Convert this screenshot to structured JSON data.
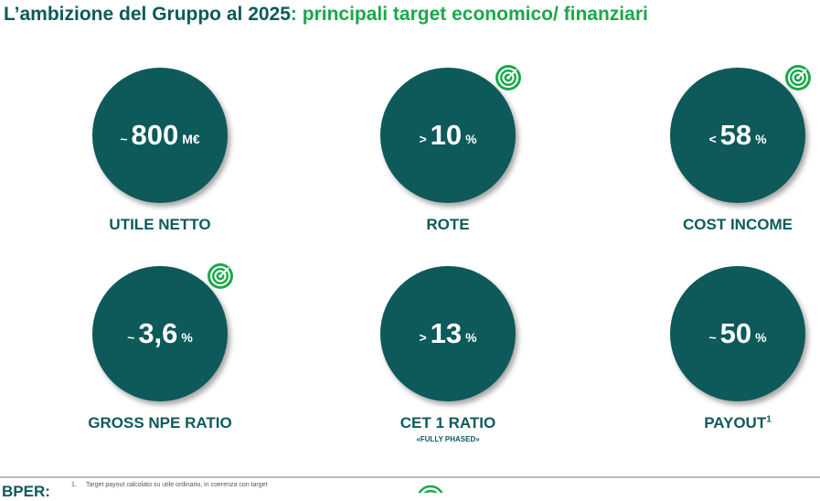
{
  "header": {
    "title_main": "L’ambizione del Gruppo al 2025",
    "title_highlight": ": principali target economico/ finanziari"
  },
  "targets": [
    {
      "prefix": "~",
      "value": "800",
      "unit": "M€",
      "label": "UTILE NETTO",
      "target_icon": false
    },
    {
      "prefix": ">",
      "value": "10",
      "unit": "%",
      "label": "ROTE",
      "target_icon": true
    },
    {
      "prefix": "<",
      "value": "58",
      "unit": "%",
      "label": "COST INCOME",
      "target_icon": true
    },
    {
      "prefix": "~",
      "value": "3,6",
      "unit": "%",
      "label": "GROSS NPE RATIO",
      "target_icon": true
    },
    {
      "prefix": ">",
      "value": "13",
      "unit": "%",
      "label": "CET 1 RATIO",
      "sublabel": "«FULLY PHASED»",
      "target_icon": false
    },
    {
      "prefix": "~",
      "value": "50",
      "unit": "%",
      "label": "PAYOUT",
      "footnote_ref": "1",
      "target_icon": false
    }
  ],
  "footer": {
    "brand": "BPER:",
    "footnote_number": "1.",
    "footnote": "Target payout calcolato su utile ordinario, in coerenza con target"
  }
}
